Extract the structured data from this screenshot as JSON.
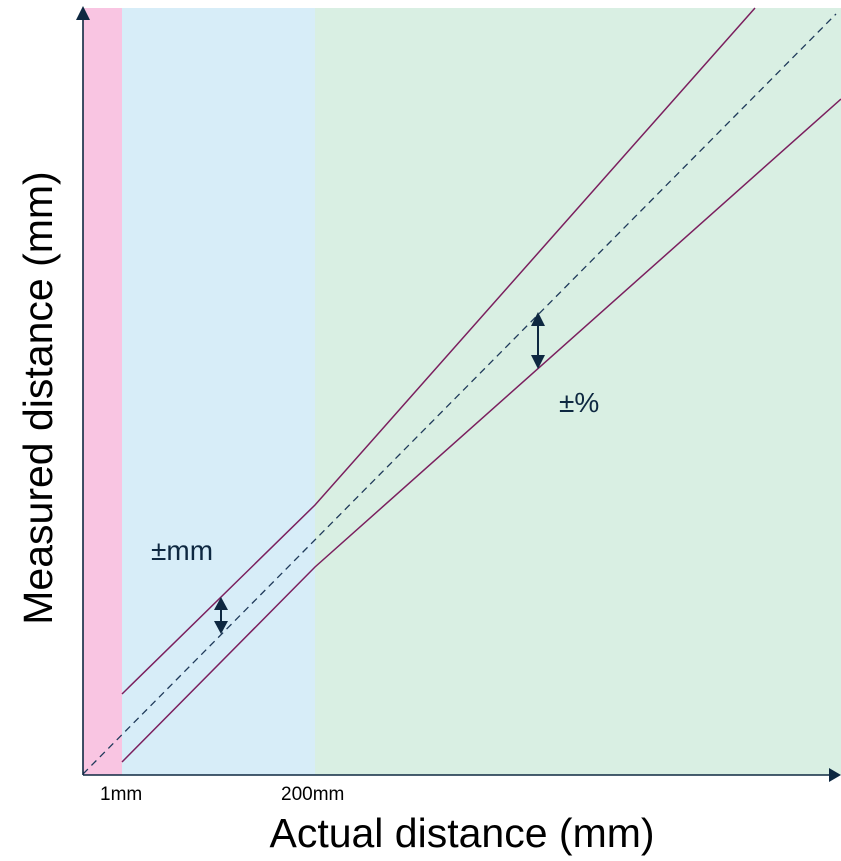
{
  "diagram": {
    "x_axis_label": "Actual distance (mm)",
    "y_axis_label": "Measured distance (mm)",
    "x_ticks": [
      "1mm",
      "200mm"
    ],
    "annotations": {
      "absolute_tolerance": "±mm",
      "percent_tolerance": "±%"
    },
    "colors": {
      "region_below_1mm": "#f9c5e2",
      "region_1_to_200mm": "#d7edf8",
      "region_above_200mm": "#d9efe3",
      "tolerance_lines": "#7b1f5e",
      "ideal_line": "#1f3a5a",
      "axes": "#0e2841"
    }
  }
}
